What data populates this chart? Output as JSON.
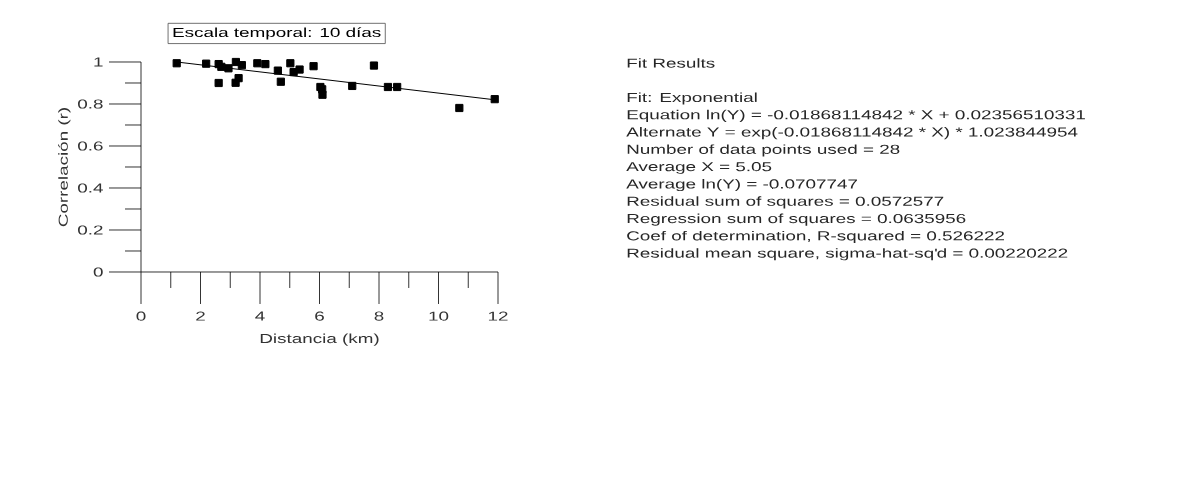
{
  "chart_data": {
    "type": "scatter",
    "title": "Escala temporal: 10 días",
    "xlabel": "Distancia (km)",
    "ylabel": "Correlación (r)",
    "xlim": [
      0,
      12
    ],
    "ylim": [
      0,
      1
    ],
    "xticks": [
      0,
      {
        "value": 1,
        "label": null
      },
      2,
      {
        "value": 3,
        "label": null
      },
      4,
      {
        "value": 5,
        "label": null
      },
      6,
      {
        "value": 7,
        "label": null
      },
      8,
      {
        "value": 9,
        "label": null
      },
      10,
      {
        "value": 11,
        "label": null
      },
      12
    ],
    "yticks": [
      0,
      {
        "value": 0.1,
        "label": null
      },
      0.2,
      {
        "value": 0.3,
        "label": null
      },
      0.4,
      {
        "value": 0.5,
        "label": null
      },
      0.6,
      {
        "value": 0.7,
        "label": null
      },
      0.8,
      {
        "value": 0.9,
        "label": null
      },
      1
    ],
    "marker": "square",
    "series": [
      {
        "type": "scatter",
        "color": "#000000",
        "x": [
          1.2,
          2.19,
          2.61,
          2.7,
          2.94,
          2.61,
          3.19,
          3.39,
          3.28,
          3.18,
          3.91,
          4.18,
          4.6,
          4.7,
          5.02,
          5.13,
          5.33,
          5.8,
          6.03,
          6.09,
          6.1,
          7.1,
          7.83,
          8.3,
          8.61,
          10.7,
          11.89
        ],
        "values": [
          0.994,
          0.992,
          0.99,
          0.977,
          0.97,
          0.9,
          1.0,
          0.985,
          0.923,
          0.901,
          0.994,
          0.99,
          0.959,
          0.906,
          0.994,
          0.952,
          0.964,
          0.98,
          0.881,
          0.87,
          0.844,
          0.886,
          0.983,
          0.881,
          0.881,
          0.781,
          0.823
        ]
      },
      {
        "type": "line",
        "color": "#000000",
        "marker": "none",
        "line_style": "solid",
        "x": [
          1.2,
          11.89
        ],
        "values": [
          1.0,
          0.82
        ]
      }
    ],
    "annotations": [
      "Fit Results",
      "Fit: Exponential",
      "Equation ln(Y) = -0.01868114842 * X + 0.02356510331",
      "Alternate Y = exp(-0.01868114842 * X) * 1.023844954",
      "Number of data points used = 28",
      "Average X = 5.05",
      "Average ln(Y) = -0.0707747",
      "Residual sum of squares = 0.0572577",
      "Regression sum of squares = 0.0635956",
      "Coef of determination, R-squared = 0.526222",
      "Residual mean square, sigma-hat-sq'd = 0.00220222"
    ]
  }
}
